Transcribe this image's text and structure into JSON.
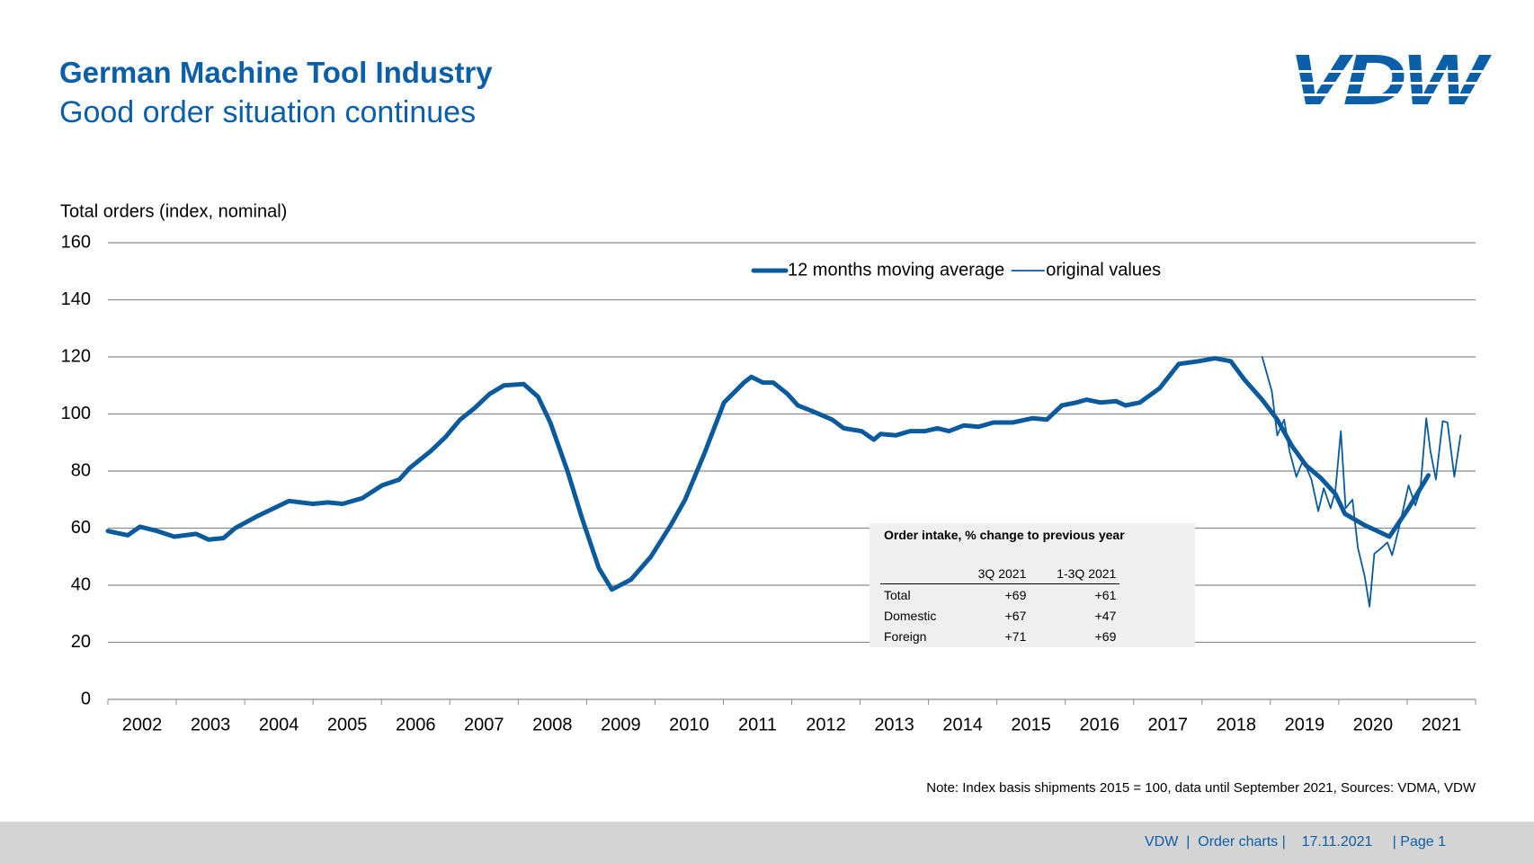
{
  "header": {
    "title": "German Machine Tool Industry",
    "subtitle": "Good order situation continues",
    "logo": "VDW"
  },
  "chart_data": {
    "type": "line",
    "y_label": "Total orders (index, nominal)",
    "categories": [
      "2002",
      "2003",
      "2004",
      "2005",
      "2006",
      "2007",
      "2008",
      "2009",
      "2010",
      "2011",
      "2012",
      "2013",
      "2014",
      "2015",
      "2016",
      "2017",
      "2018",
      "2019",
      "2020",
      "2021"
    ],
    "xlim": [
      2002,
      2022
    ],
    "ylim": [
      0,
      160
    ],
    "yticks": [
      0,
      20,
      40,
      60,
      80,
      100,
      120,
      140,
      160
    ],
    "grid": true,
    "legend": "top-right",
    "series": [
      {
        "name": "12 months moving average",
        "color": "#0a5a9c",
        "x": [
          2002.0,
          2002.29,
          2002.47,
          2002.72,
          2002.97,
          2003.29,
          2003.47,
          2003.69,
          2003.86,
          2004.17,
          2004.43,
          2004.65,
          2005.0,
          2005.22,
          2005.43,
          2005.72,
          2006.01,
          2006.26,
          2006.41,
          2006.72,
          2006.94,
          2007.15,
          2007.36,
          2007.58,
          2007.79,
          2008.08,
          2008.29,
          2008.47,
          2008.72,
          2008.94,
          2009.18,
          2009.37,
          2009.65,
          2009.94,
          2010.23,
          2010.44,
          2010.72,
          2011.01,
          2011.3,
          2011.41,
          2011.58,
          2011.73,
          2011.94,
          2012.09,
          2012.3,
          2012.59,
          2012.76,
          2013.02,
          2013.2,
          2013.3,
          2013.52,
          2013.73,
          2013.95,
          2014.13,
          2014.3,
          2014.52,
          2014.73,
          2014.95,
          2015.23,
          2015.52,
          2015.73,
          2015.95,
          2016.16,
          2016.31,
          2016.52,
          2016.74,
          2016.88,
          2017.09,
          2017.38,
          2017.66,
          2017.95,
          2018.19,
          2018.42,
          2018.62,
          2018.88,
          2019.1,
          2019.31,
          2019.52,
          2019.74,
          2019.95,
          2020.09,
          2020.38,
          2020.74,
          2021.02,
          2021.31
        ],
        "values": [
          59,
          57.5,
          60.5,
          59,
          57,
          58,
          56,
          56.5,
          60,
          64,
          67,
          69.5,
          68.5,
          69,
          68.5,
          70.5,
          75,
          77,
          81,
          87,
          92,
          98,
          102,
          107,
          110,
          110.5,
          106,
          97,
          80,
          63,
          46,
          38.5,
          42,
          50,
          61,
          70,
          86,
          104,
          111,
          113,
          111,
          111,
          107,
          103,
          101,
          98,
          95,
          94,
          91,
          93,
          92.5,
          94,
          94,
          95,
          94,
          96,
          95.5,
          97,
          97,
          98.5,
          98,
          103,
          104,
          105,
          104,
          104.5,
          103,
          104,
          109,
          117.5,
          118.5,
          119.5,
          118.5,
          112,
          105,
          98,
          89,
          82,
          77.5,
          72,
          65,
          61,
          57,
          67,
          78.5
        ]
      },
      {
        "name": "original values",
        "color": "#0a5a9c",
        "x": [
          2018.88,
          2019.02,
          2019.1,
          2019.2,
          2019.28,
          2019.38,
          2019.48,
          2019.6,
          2019.7,
          2019.78,
          2019.88,
          2019.95,
          2020.03,
          2020.1,
          2020.2,
          2020.28,
          2020.38,
          2020.45,
          2020.52,
          2020.62,
          2020.71,
          2020.78,
          2020.88,
          2021.02,
          2021.12,
          2021.19,
          2021.28,
          2021.34,
          2021.42,
          2021.52,
          2021.59,
          2021.69,
          2021.78
        ],
        "values": [
          120,
          108,
          92.5,
          98,
          87,
          78,
          84,
          77,
          66,
          74,
          67,
          73,
          94,
          67,
          70,
          53,
          43,
          32.5,
          51,
          53,
          55,
          50.5,
          60,
          75,
          68,
          73,
          98.5,
          87,
          77,
          97.5,
          97,
          78,
          92.5
        ]
      }
    ]
  },
  "table": {
    "title": "Order intake, % change to previous year",
    "columns": [
      "3Q 2021",
      "1-3Q 2021"
    ],
    "rows": [
      [
        "Total",
        "+69",
        "+61"
      ],
      [
        "Domestic",
        "+67",
        "+47"
      ],
      [
        "Foreign",
        "+71",
        "+69"
      ]
    ]
  },
  "note": "Note: Index basis shipments 2015 = 100, data until September 2021, Sources: VDMA, VDW",
  "footer": "VDW  |  Order charts |    17.11.2021     | Page 1"
}
